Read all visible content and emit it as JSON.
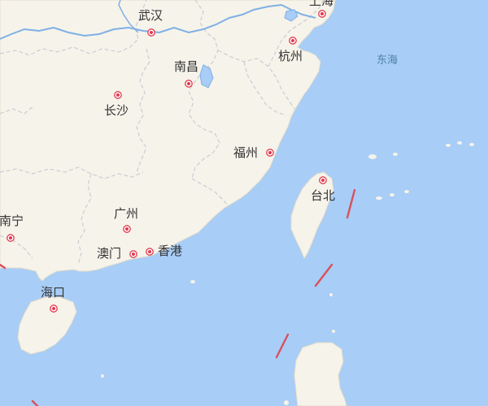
{
  "cities": [
    {
      "id": "shanghai",
      "name": "上海"
    },
    {
      "id": "wuhan",
      "name": "武汉"
    },
    {
      "id": "hangzhou",
      "name": "杭州"
    },
    {
      "id": "nanchang",
      "name": "南昌"
    },
    {
      "id": "changsha",
      "name": "长沙"
    },
    {
      "id": "fuzhou",
      "name": "福州"
    },
    {
      "id": "taipei",
      "name": "台北"
    },
    {
      "id": "guangzhou",
      "name": "广州"
    },
    {
      "id": "nanning",
      "name": "南宁"
    },
    {
      "id": "macau",
      "name": "澳门"
    },
    {
      "id": "hongkong",
      "name": "香港"
    },
    {
      "id": "haikou",
      "name": "海口"
    }
  ],
  "seas": [
    {
      "id": "east-china-sea",
      "name": "东海"
    }
  ],
  "colors": {
    "land": "#f6f3ea",
    "water": "#a8cdf6",
    "province_border": "#c9cdd4",
    "country_border": "#7fb0e5",
    "dashed_boundary": "#d9505c",
    "marker_fill": "#e2384d",
    "label_text": "#333333",
    "sea_label": "#4f7fa8"
  }
}
